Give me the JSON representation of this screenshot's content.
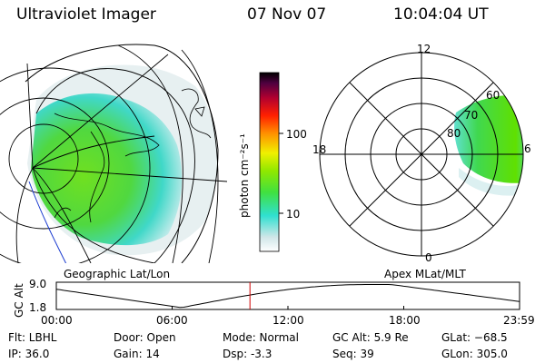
{
  "header": {
    "instrument": "Ultraviolet Imager",
    "date": "07 Nov 07",
    "time": "10:04:04 UT"
  },
  "colorbar": {
    "unit_label": "photon cm⁻²s⁻¹",
    "tick_100": "100",
    "tick_10": "10",
    "colors": [
      "#ffffff",
      "#d8e8e8",
      "#30e0d0",
      "#40e040",
      "#80e000",
      "#f0f000",
      "#ff9000",
      "#ff2000",
      "#b00030",
      "#400040",
      "#000000"
    ]
  },
  "geo_map": {
    "caption": "Geographic Lat/Lon"
  },
  "polar_plot": {
    "caption": "Apex MLat/MLT",
    "mlt_labels": {
      "top": "12",
      "left": "18",
      "right": "6",
      "bottom": "0"
    },
    "lat_labels": [
      "60",
      "70",
      "80"
    ]
  },
  "timeline": {
    "ylabel": "GC Alt",
    "ymax_label": "9.0",
    "ymin_label": "1.8",
    "xticks": [
      "00:00",
      "06:00",
      "12:00",
      "18:00",
      "23:59"
    ],
    "marker_fraction": 0.418,
    "curve_color": "#000000",
    "marker_color": "#d00000"
  },
  "status": {
    "flt": "Flt: LBHL",
    "ip": "IP: 36.0",
    "door": "Door: Open",
    "gain": "Gain: 14",
    "mode": "Mode: Normal",
    "dsp": "Dsp:    -3.3",
    "gc_alt": "GC Alt: 5.9 Re",
    "seq": "Seq: 39",
    "glat": "GLat: −68.5",
    "glon": "GLon: 305.0"
  }
}
